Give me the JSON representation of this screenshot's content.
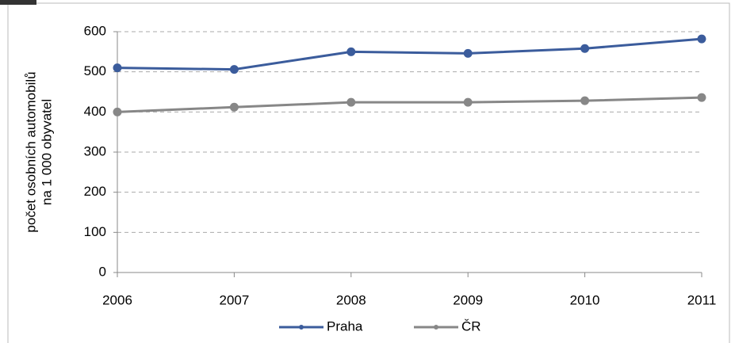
{
  "chart_data": {
    "type": "line",
    "ylabel": [
      "počet osobních automobilů",
      "na 1 000 obyvatel"
    ],
    "x": [
      2006,
      2007,
      2008,
      2009,
      2010,
      2011
    ],
    "xlim": [
      2006,
      2011
    ],
    "xticks": [
      2006,
      2007,
      2008,
      2009,
      2010,
      2011
    ],
    "ylim": [
      0,
      600
    ],
    "yticks": [
      0,
      100,
      200,
      300,
      400,
      500,
      600
    ],
    "grid": true,
    "legend": "bottom",
    "series": [
      {
        "name": "Praha",
        "color": "#3b5c9c",
        "values": [
          510,
          506,
          550,
          546,
          558,
          582
        ]
      },
      {
        "name": "ČR",
        "color": "#878787",
        "values": [
          400,
          412,
          424,
          424,
          428,
          436
        ]
      }
    ]
  }
}
